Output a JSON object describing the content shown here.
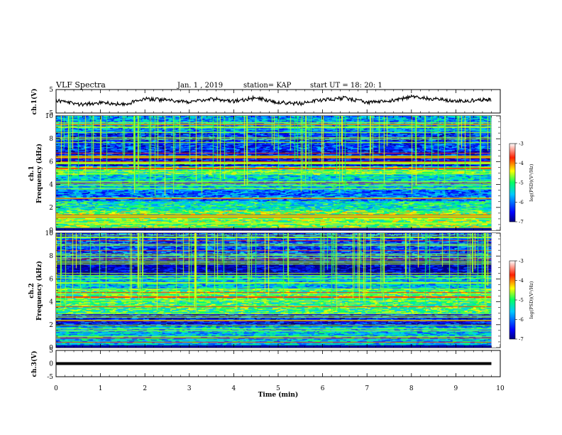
{
  "header": {
    "title": "VLF Spectra",
    "date": "Jan. 1 , 2019",
    "station": "station= KAP",
    "start": "start UT = 18: 20: 1"
  },
  "chart_data": [
    {
      "type": "line",
      "panel": "ch1-voltage",
      "ylabel": "ch.1(V)",
      "ylim": [
        -5,
        5
      ],
      "yticks": [
        "5",
        "-5"
      ],
      "x_range_min": [
        0,
        9.8
      ],
      "series": [
        {
          "x": [
            0,
            0.5,
            1,
            1.5,
            2,
            2.5,
            3,
            3.5,
            4,
            4.5,
            5,
            5.5,
            6,
            6.5,
            7,
            7.5,
            8,
            8.5,
            9,
            9.5,
            9.8
          ],
          "values": [
            0.5,
            -1.5,
            -0.5,
            -1.5,
            1,
            0.5,
            -0.5,
            1,
            0,
            1.5,
            -0.5,
            -1,
            0.5,
            1.5,
            -0.5,
            0,
            2,
            1,
            0,
            0.5,
            0.5
          ]
        }
      ]
    },
    {
      "type": "heatmap",
      "panel": "ch1-spectrogram",
      "ylabel_top": "ch.1",
      "ylabel": "Frequency (kHz)",
      "ylim": [
        0,
        10
      ],
      "yticks": [
        "0",
        "2",
        "4",
        "6",
        "8",
        "10"
      ],
      "frequency_bands": [
        {
          "from_khz": 0.2,
          "to_khz": 1.8,
          "level": -4.8
        },
        {
          "from_khz": 1.8,
          "to_khz": 2.6,
          "level": -5.3
        },
        {
          "from_khz": 2.6,
          "to_khz": 3.6,
          "level": -6.0
        },
        {
          "from_khz": 3.6,
          "to_khz": 4.9,
          "level": -5.5
        },
        {
          "from_khz": 4.9,
          "to_khz": 5.6,
          "level": -5.0
        },
        {
          "from_khz": 5.6,
          "to_khz": 7.0,
          "level": -6.5
        },
        {
          "from_khz": 7.0,
          "to_khz": 8.6,
          "level": -6.3
        },
        {
          "from_khz": 8.6,
          "to_khz": 10.0,
          "level": -5.8
        }
      ],
      "colorbar": {
        "label": "log(PSD)(V²/Hz)",
        "ticks": [
          "-3",
          "-4",
          "-5",
          "-6",
          "-7"
        ],
        "range": [
          -7,
          -3
        ]
      }
    },
    {
      "type": "heatmap",
      "panel": "ch2-spectrogram",
      "ylabel_top": "ch.2",
      "ylabel": "Frequency (kHz)",
      "ylim": [
        0,
        10
      ],
      "yticks": [
        "0",
        "2",
        "4",
        "6",
        "8",
        "10"
      ],
      "frequency_bands": [
        {
          "from_khz": 0.2,
          "to_khz": 1.9,
          "level": -5.6
        },
        {
          "from_khz": 1.9,
          "to_khz": 3.0,
          "level": -6.5
        },
        {
          "from_khz": 3.0,
          "to_khz": 5.2,
          "level": -5.0
        },
        {
          "from_khz": 5.2,
          "to_khz": 6.3,
          "level": -5.6
        },
        {
          "from_khz": 6.3,
          "to_khz": 7.7,
          "level": -6.8
        },
        {
          "from_khz": 7.7,
          "to_khz": 10.0,
          "level": -6.2
        }
      ],
      "colorbar": {
        "label": "log(PSD)(V²/Hz)",
        "ticks": [
          "-3",
          "-4",
          "-5",
          "-6",
          "-7"
        ],
        "range": [
          -7,
          -3
        ]
      }
    },
    {
      "type": "line",
      "panel": "ch3-voltage",
      "ylabel": "ch.3(V)",
      "ylim": [
        -5,
        5
      ],
      "yticks": [
        "5",
        "0",
        "-5"
      ],
      "series": [
        {
          "x": [
            0,
            9.8
          ],
          "values": [
            0,
            0
          ]
        }
      ]
    }
  ],
  "xaxis": {
    "label": "Time (min)",
    "range": [
      0,
      10
    ],
    "ticks": [
      "0",
      "1",
      "2",
      "3",
      "4",
      "5",
      "6",
      "7",
      "8",
      "9",
      "10"
    ]
  },
  "colors": {
    "line": "#000000",
    "background": "#ffffff"
  }
}
